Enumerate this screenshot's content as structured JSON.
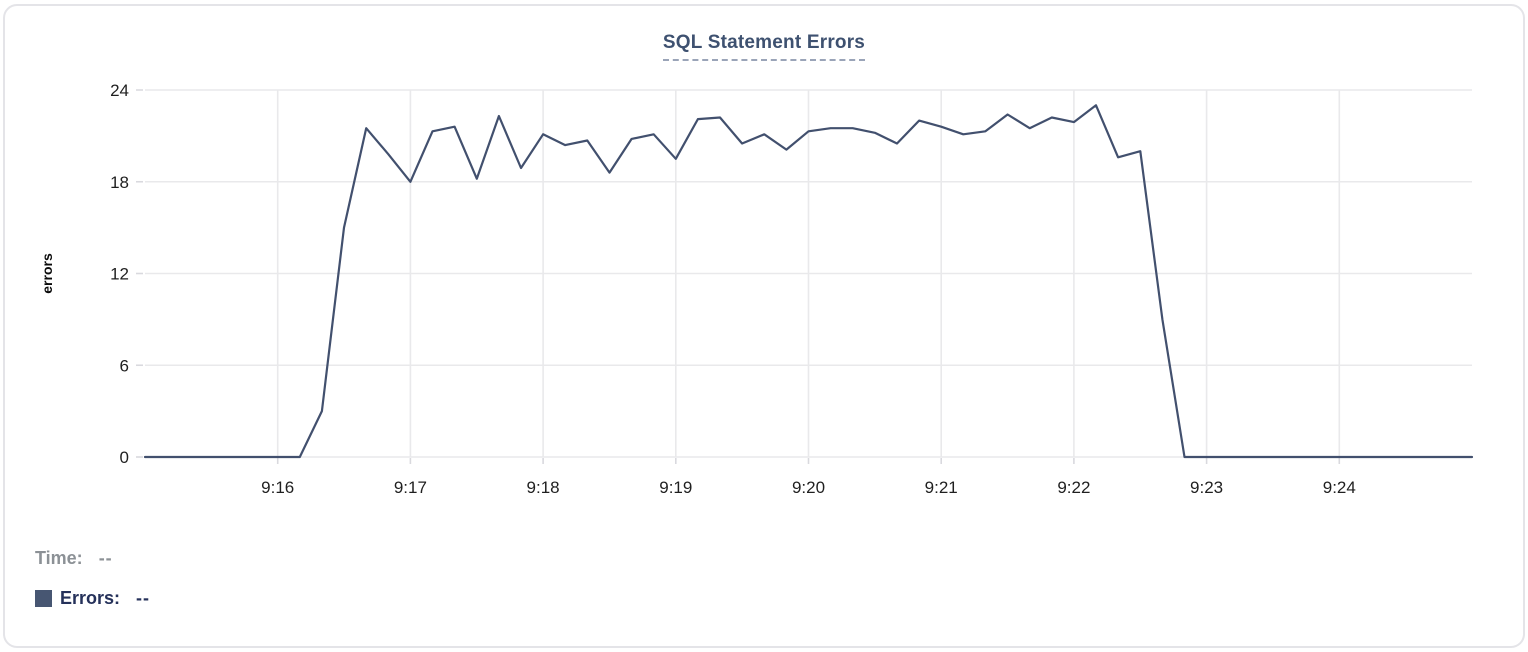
{
  "header": {
    "title": "SQL Statement Errors"
  },
  "readout": {
    "time_label": "Time:",
    "time_value": "--",
    "errors_label": "Errors:",
    "errors_value": "--"
  },
  "colors": {
    "line": "#42506e",
    "title": "#3e5170",
    "grid": "#e9e9eb",
    "tick": "#d9d9de",
    "axis_text": "#1f1f1f",
    "muted_text": "#8c9196",
    "legend_text": "#25315a",
    "swatch": "#475672",
    "card_border": "#e4e4e8"
  },
  "chart_data": {
    "type": "line",
    "title": "SQL Statement Errors",
    "xlabel": "",
    "ylabel": "errors",
    "ylim": [
      0,
      24
    ],
    "y_ticks": [
      0,
      6,
      12,
      18,
      24
    ],
    "x_tick_labels": [
      "9:16",
      "9:17",
      "9:18",
      "9:19",
      "9:20",
      "9:21",
      "9:22",
      "9:23",
      "9:24"
    ],
    "x_range": [
      "9:15:00",
      "9:25:00"
    ],
    "start_time": "9:15:00",
    "interval_seconds": 10,
    "grid": true,
    "legend_position": "none",
    "series": [
      {
        "name": "Errors",
        "color": "#42506e",
        "values": [
          0,
          0,
          0,
          0,
          0,
          0,
          0,
          0,
          3,
          15,
          21.5,
          19.8,
          18,
          21.3,
          21.6,
          18.2,
          22.3,
          18.9,
          21.1,
          20.4,
          20.7,
          18.6,
          20.8,
          21.1,
          19.5,
          22.1,
          22.2,
          20.5,
          21.1,
          20.1,
          21.3,
          21.5,
          21.5,
          21.2,
          20.5,
          22,
          21.6,
          21.1,
          21.3,
          22.4,
          21.5,
          22.2,
          21.9,
          23,
          19.6,
          20,
          9,
          0,
          0,
          0,
          0,
          0,
          0,
          0,
          0,
          0,
          0,
          0,
          0,
          0,
          0
        ]
      }
    ]
  }
}
